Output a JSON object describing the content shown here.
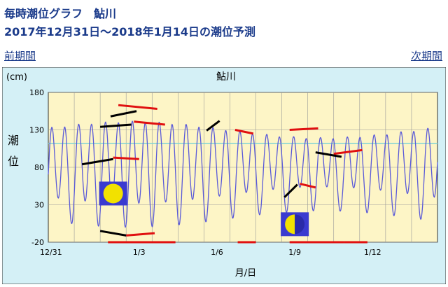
{
  "header": {
    "title": "毎時潮位グラフ　鮎川",
    "subtitle": "2017年12月31日～2018年1月14日の潮位予測"
  },
  "nav": {
    "prev": "前期間",
    "next": "次期間"
  },
  "colors": {
    "title": "#1a3a8a",
    "panel_bg": "#d4f0f6",
    "plot_bg": "#fdf5c6",
    "tide_line": "#5a5ad8",
    "high_mark": "#e01010",
    "low_mark": "#000000",
    "reference_line": "#7fd4d4"
  },
  "chart_data": {
    "type": "line",
    "title": "鮎川",
    "ylabel": "潮位",
    "yunit": "(cm)",
    "xlabel": "月/日",
    "ylim": [
      -20,
      180
    ],
    "yticks": [
      -20,
      30,
      80,
      130,
      180
    ],
    "xlim": [
      "2017-12-31",
      "2018-01-15"
    ],
    "xtick_labels": [
      "12/31",
      "1/3",
      "1/6",
      "1/9",
      "1/12"
    ],
    "xtick_days": [
      0,
      3,
      6,
      9,
      12
    ],
    "grid": true,
    "reference_level_cm": 112,
    "tide_model": {
      "mean_cm": 78,
      "semidiurnal_amplitude_cm": [
        62,
        40
      ],
      "diurnal_amplitude_cm": 16,
      "semidiurnal_period_hours": 12.42,
      "diurnal_period_hours": 24.84,
      "spring_neap_period_days": 14.77
    },
    "moon_phases": [
      {
        "name": "full-moon",
        "day": 2.5
      },
      {
        "name": "first-quarter-moon",
        "day": 9.5
      }
    ],
    "high_tide_trend_marks": [
      {
        "day": [
          2.7,
          4.2
        ],
        "cm": [
          163,
          158
        ]
      },
      {
        "day": [
          3.3,
          4.5
        ],
        "cm": [
          141,
          137
        ]
      },
      {
        "day": [
          2.5,
          3.5
        ],
        "cm": [
          93,
          91
        ]
      },
      {
        "day": [
          7.2,
          7.9
        ],
        "cm": [
          130,
          125
        ]
      },
      {
        "day": [
          9.3,
          10.4
        ],
        "cm": [
          130,
          132
        ]
      },
      {
        "day": [
          11.0,
          12.1
        ],
        "cm": [
          98,
          103
        ]
      },
      {
        "day": [
          9.7,
          10.3
        ],
        "cm": [
          58,
          53
        ]
      },
      {
        "day": [
          3.0,
          4.1
        ],
        "cm": [
          -11,
          -8
        ]
      },
      {
        "day": [
          2.3,
          4.9
        ],
        "cm": [
          -20,
          -20
        ]
      },
      {
        "day": [
          7.3,
          8.0
        ],
        "cm": [
          -20,
          -20
        ]
      },
      {
        "day": [
          9.3,
          11.4
        ],
        "cm": [
          -20,
          -20
        ]
      },
      {
        "day": [
          11.4,
          12.3
        ],
        "cm": [
          -20,
          -20
        ]
      }
    ],
    "low_tide_trend_marks": [
      {
        "day": [
          1.3,
          2.5
        ],
        "cm": [
          84,
          91
        ]
      },
      {
        "day": [
          2.0,
          3.2
        ],
        "cm": [
          134,
          137
        ]
      },
      {
        "day": [
          2.4,
          3.4
        ],
        "cm": [
          148,
          155
        ]
      },
      {
        "day": [
          6.1,
          6.6
        ],
        "cm": [
          129,
          142
        ]
      },
      {
        "day": [
          10.3,
          11.3
        ],
        "cm": [
          100,
          94
        ]
      },
      {
        "day": [
          2.0,
          3.0
        ],
        "cm": [
          -5,
          -11
        ]
      },
      {
        "day": [
          9.1,
          9.6
        ],
        "cm": [
          40,
          57
        ]
      }
    ]
  }
}
